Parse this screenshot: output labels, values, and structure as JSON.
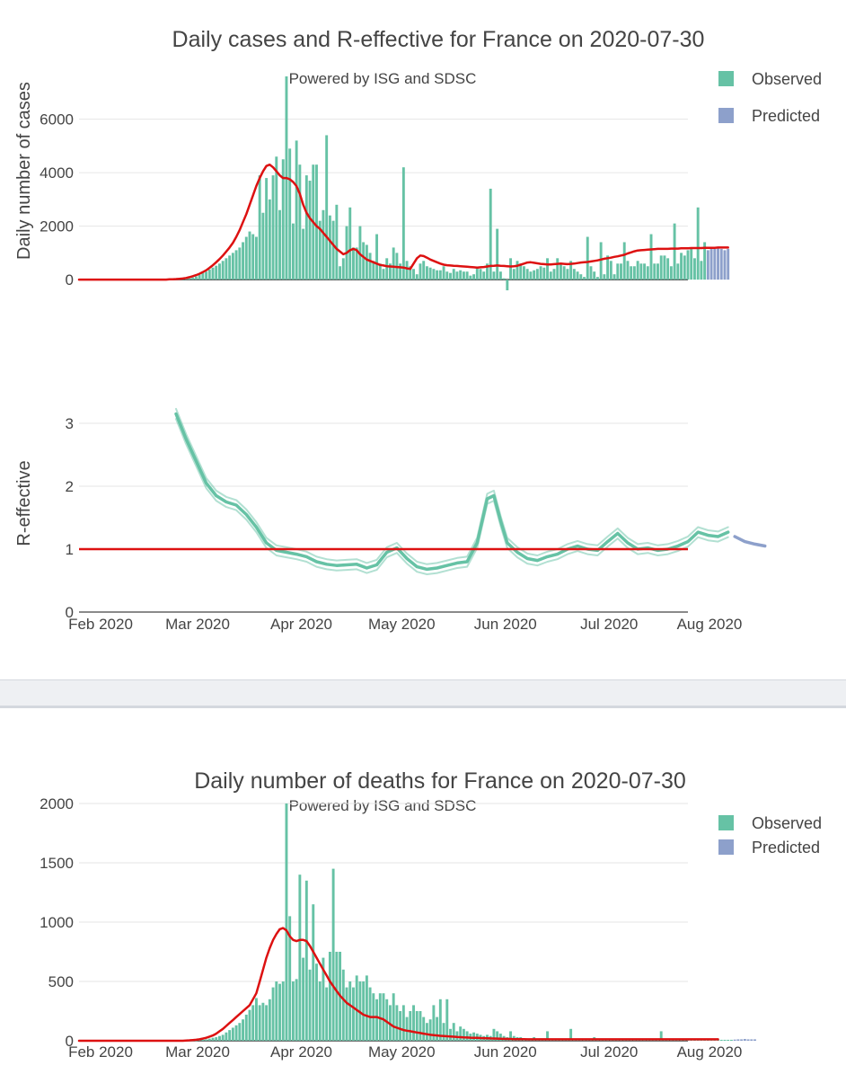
{
  "colors": {
    "observed": "#66c2a5",
    "predicted": "#8da0cb",
    "line": "#dd1111",
    "grid": "#e6e6e6",
    "text": "#444444"
  },
  "chart_data": [
    {
      "id": "cases",
      "type": "bar",
      "title": "Daily cases and R-effective for France on 2020-07-30",
      "subtitle": "Powered by ISG and SDSC",
      "ylabel": "Daily number of cases",
      "xlabel": "",
      "ylim": [
        -500,
        7600
      ],
      "yticks": [
        0,
        2000,
        4000,
        6000
      ],
      "legend": {
        "position": "top-right",
        "entries": [
          "Observed",
          "Predicted"
        ]
      },
      "x_start": "2020-02-01",
      "observed": [
        0,
        0,
        0,
        0,
        0,
        0,
        0,
        0,
        0,
        0,
        0,
        0,
        0,
        0,
        0,
        0,
        0,
        0,
        0,
        0,
        0,
        0,
        0,
        0,
        0,
        0,
        0,
        5,
        10,
        15,
        20,
        30,
        40,
        60,
        80,
        120,
        180,
        250,
        300,
        380,
        450,
        520,
        600,
        700,
        800,
        900,
        1000,
        1100,
        1200,
        1400,
        1600,
        1800,
        1700,
        1600,
        3900,
        2500,
        3800,
        3000,
        3900,
        4600,
        2600,
        4500,
        7600,
        4900,
        2100,
        5200,
        4300,
        1900,
        3900,
        3700,
        4300,
        4300,
        2200,
        2600,
        5400,
        2400,
        2200,
        2800,
        500,
        800,
        2000,
        2700,
        1200,
        1200,
        2000,
        1400,
        1300,
        1000,
        700,
        1700,
        600,
        400,
        800,
        600,
        1200,
        1000,
        600,
        4200,
        700,
        500,
        400,
        200,
        600,
        700,
        500,
        450,
        400,
        350,
        350,
        500,
        300,
        250,
        400,
        300,
        350,
        300,
        300,
        150,
        200,
        450,
        400,
        300,
        600,
        3400,
        300,
        1900,
        300,
        50,
        -400,
        800,
        400,
        700,
        600,
        500,
        400,
        300,
        350,
        400,
        500,
        450,
        800,
        300,
        400,
        800,
        600,
        500,
        400,
        700,
        400,
        300,
        200,
        100,
        1600,
        500,
        300,
        100,
        1400,
        200,
        900,
        700,
        200,
        600,
        600,
        1400,
        700,
        500,
        500,
        700,
        600,
        600,
        500,
        1700,
        600,
        600,
        900,
        900,
        800,
        500,
        2100,
        600,
        1000,
        900,
        1100,
        1200,
        800,
        2700,
        700,
        1400
      ],
      "predicted": [
        1100,
        1150,
        1150,
        1200,
        1150,
        1100,
        1150
      ],
      "smoothed": [
        0,
        0,
        0,
        0,
        0,
        0,
        0,
        0,
        0,
        0,
        0,
        0,
        0,
        0,
        0,
        0,
        0,
        0,
        0,
        0,
        0,
        0,
        0,
        0,
        0,
        0,
        0,
        10,
        15,
        20,
        30,
        40,
        60,
        90,
        130,
        170,
        220,
        280,
        350,
        440,
        540,
        650,
        770,
        900,
        1050,
        1200,
        1380,
        1600,
        1850,
        2150,
        2450,
        2800,
        3150,
        3500,
        3800,
        4050,
        4250,
        4300,
        4200,
        4050,
        3900,
        3800,
        3800,
        3750,
        3650,
        3500,
        3200,
        2800,
        2500,
        2300,
        2150,
        2000,
        1900,
        1750,
        1600,
        1450,
        1300,
        1150,
        1050,
        950,
        1000,
        1100,
        1150,
        1100,
        950,
        850,
        750,
        700,
        650,
        600,
        550,
        530,
        500,
        490,
        480,
        470,
        460,
        450,
        420,
        400,
        600,
        800,
        900,
        880,
        820,
        750,
        700,
        650,
        600,
        560,
        540,
        530,
        520,
        510,
        500,
        490,
        480,
        470,
        460,
        450,
        460,
        470,
        490,
        510,
        520,
        530,
        520,
        510,
        500,
        490,
        500,
        520,
        560,
        600,
        640,
        650,
        630,
        610,
        590,
        580,
        570,
        570,
        580,
        590,
        600,
        590,
        580,
        590,
        600,
        620,
        640,
        650,
        660,
        680,
        700,
        720,
        750,
        780,
        800,
        820,
        850,
        870,
        900,
        930,
        980,
        1020,
        1060,
        1090,
        1100,
        1110,
        1120,
        1130,
        1140,
        1150,
        1150,
        1150,
        1150,
        1160,
        1160,
        1160,
        1170,
        1170,
        1170,
        1180,
        1180,
        1180,
        1180,
        1190,
        1190,
        1190,
        1190,
        1200,
        1200,
        1200,
        1200
      ]
    },
    {
      "id": "reff",
      "type": "line",
      "ylabel": "R-effective",
      "xlabel": "",
      "ylim": [
        0,
        3.5
      ],
      "yticks": [
        0,
        1,
        2,
        3
      ],
      "xticks": [
        "Feb 2020",
        "Mar 2020",
        "Apr 2020",
        "May 2020",
        "Jun 2020",
        "Jul 2020",
        "Aug 2020"
      ],
      "reference_line": 1,
      "x_start": "2020-02-01",
      "observed": [
        [
          29,
          3.15
        ],
        [
          32,
          2.75
        ],
        [
          35,
          2.4
        ],
        [
          38,
          2.05
        ],
        [
          41,
          1.85
        ],
        [
          44,
          1.75
        ],
        [
          47,
          1.7
        ],
        [
          50,
          1.55
        ],
        [
          53,
          1.35
        ],
        [
          56,
          1.1
        ],
        [
          59,
          0.98
        ],
        [
          62,
          0.95
        ],
        [
          65,
          0.92
        ],
        [
          68,
          0.88
        ],
        [
          71,
          0.8
        ],
        [
          74,
          0.76
        ],
        [
          77,
          0.74
        ],
        [
          80,
          0.75
        ],
        [
          83,
          0.76
        ],
        [
          86,
          0.7
        ],
        [
          89,
          0.75
        ],
        [
          92,
          0.95
        ],
        [
          95,
          1.02
        ],
        [
          98,
          0.85
        ],
        [
          101,
          0.72
        ],
        [
          104,
          0.68
        ],
        [
          107,
          0.7
        ],
        [
          110,
          0.74
        ],
        [
          113,
          0.78
        ],
        [
          116,
          0.8
        ],
        [
          119,
          1.1
        ],
        [
          122,
          1.8
        ],
        [
          124,
          1.85
        ],
        [
          126,
          1.45
        ],
        [
          128,
          1.1
        ],
        [
          131,
          0.95
        ],
        [
          134,
          0.85
        ],
        [
          137,
          0.82
        ],
        [
          140,
          0.88
        ],
        [
          143,
          0.92
        ],
        [
          146,
          1.0
        ],
        [
          149,
          1.05
        ],
        [
          152,
          1.0
        ],
        [
          155,
          0.98
        ],
        [
          158,
          1.12
        ],
        [
          161,
          1.25
        ],
        [
          164,
          1.1
        ],
        [
          167,
          1.0
        ],
        [
          170,
          1.02
        ],
        [
          173,
          0.98
        ],
        [
          176,
          1.0
        ],
        [
          179,
          1.05
        ],
        [
          182,
          1.12
        ],
        [
          185,
          1.27
        ],
        [
          188,
          1.22
        ],
        [
          191,
          1.2
        ],
        [
          194,
          1.27
        ]
      ],
      "predicted": [
        [
          196,
          1.2
        ],
        [
          199,
          1.12
        ],
        [
          202,
          1.08
        ],
        [
          205,
          1.05
        ]
      ]
    },
    {
      "id": "deaths",
      "type": "bar",
      "title": "Daily number of deaths for France on 2020-07-30",
      "subtitle": "Powered by ISG and SDSC",
      "ylabel": "",
      "xlabel": "",
      "ylim": [
        0,
        2000
      ],
      "yticks": [
        0,
        500,
        1000,
        1500,
        2000
      ],
      "xticks": [
        "Feb 2020",
        "Mar 2020",
        "Apr 2020",
        "May 2020",
        "Jun 2020",
        "Jul 2020",
        "Aug 2020"
      ],
      "legend": {
        "position": "top-right",
        "entries": [
          "Observed",
          "Predicted"
        ]
      },
      "x_start": "2020-02-01",
      "observed": [
        0,
        0,
        0,
        0,
        0,
        0,
        0,
        0,
        0,
        0,
        0,
        0,
        0,
        0,
        0,
        0,
        0,
        0,
        0,
        0,
        0,
        0,
        0,
        0,
        0,
        0,
        0,
        0,
        0,
        0,
        0,
        0,
        0,
        0,
        0,
        2,
        5,
        8,
        12,
        18,
        25,
        30,
        40,
        50,
        70,
        90,
        110,
        130,
        150,
        180,
        220,
        260,
        300,
        360,
        300,
        320,
        300,
        350,
        450,
        500,
        480,
        500,
        2000,
        1050,
        500,
        520,
        1400,
        700,
        1350,
        600,
        1150,
        650,
        500,
        700,
        450,
        750,
        1450,
        750,
        750,
        600,
        450,
        500,
        450,
        550,
        500,
        500,
        550,
        450,
        400,
        350,
        400,
        400,
        350,
        300,
        400,
        300,
        250,
        300,
        200,
        250,
        300,
        250,
        250,
        200,
        150,
        180,
        300,
        200,
        350,
        150,
        350,
        100,
        150,
        80,
        120,
        100,
        80,
        60,
        70,
        60,
        50,
        40,
        50,
        40,
        100,
        80,
        60,
        40,
        30,
        80,
        40,
        30,
        30,
        20,
        20,
        20,
        30,
        15,
        20,
        20,
        80,
        15,
        10,
        10,
        10,
        15,
        10,
        100,
        10,
        10,
        10,
        8,
        10,
        10,
        30,
        10,
        8,
        8,
        10,
        8,
        10,
        8,
        8,
        8,
        10,
        8,
        8,
        8,
        8,
        15,
        8,
        8,
        8,
        8,
        80,
        8,
        8,
        8,
        8,
        8,
        8,
        8,
        10,
        8,
        8,
        8,
        15,
        8,
        10,
        8,
        8,
        10,
        8,
        8,
        8,
        8
      ],
      "predicted": [
        10,
        12,
        12,
        15,
        12,
        12,
        12
      ],
      "smoothed": [
        0,
        0,
        0,
        0,
        0,
        0,
        0,
        0,
        0,
        0,
        0,
        0,
        0,
        0,
        0,
        0,
        0,
        0,
        0,
        0,
        0,
        0,
        0,
        0,
        0,
        0,
        0,
        0,
        0,
        0,
        0,
        0,
        2,
        4,
        6,
        8,
        12,
        18,
        25,
        35,
        45,
        60,
        80,
        100,
        125,
        150,
        175,
        200,
        225,
        250,
        275,
        300,
        350,
        400,
        500,
        600,
        700,
        780,
        850,
        900,
        940,
        950,
        930,
        880,
        850,
        840,
        850,
        850,
        840,
        800,
        750,
        700,
        650,
        600,
        550,
        500,
        460,
        420,
        380,
        350,
        320,
        300,
        280,
        260,
        240,
        220,
        210,
        200,
        200,
        200,
        190,
        180,
        160,
        140,
        120,
        110,
        100,
        90,
        85,
        80,
        75,
        70,
        65,
        60,
        55,
        50,
        48,
        45,
        42,
        40,
        38,
        36,
        34,
        32,
        30,
        28,
        27,
        26,
        25,
        24,
        23,
        22,
        21,
        20,
        19,
        18,
        17,
        16,
        15,
        15,
        14,
        14,
        13,
        13,
        12,
        12,
        12,
        12,
        12,
        12,
        12,
        12,
        12,
        12,
        12,
        12,
        12,
        12,
        12,
        12,
        12,
        12,
        12,
        12,
        12,
        12,
        12,
        12,
        12,
        12,
        12,
        12,
        12,
        12,
        12,
        12,
        12,
        12,
        12,
        12,
        12,
        12,
        12,
        12,
        12,
        12,
        12,
        12,
        12,
        12,
        12,
        12,
        12,
        12,
        12,
        12,
        12,
        12,
        12,
        12,
        12,
        12
      ]
    }
  ]
}
